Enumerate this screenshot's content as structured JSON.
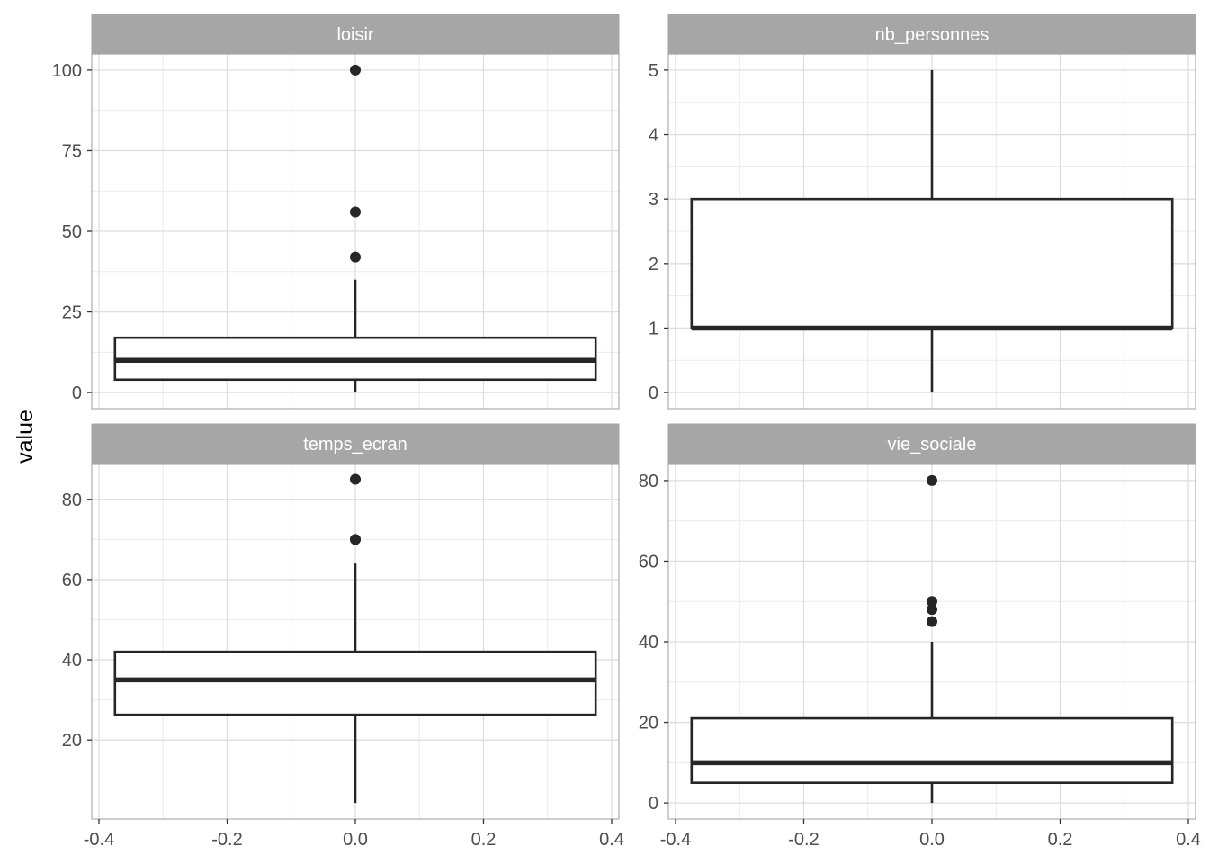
{
  "chart_data": {
    "type": "boxplot",
    "ylabel": "value",
    "xlabel": "",
    "x_ticks": [
      "-0.4",
      "-0.2",
      "0.0",
      "0.2",
      "0.4"
    ],
    "x_tick_values": [
      -0.4,
      -0.2,
      0.0,
      0.2,
      0.4
    ],
    "xlim": [
      -0.4,
      0.4
    ],
    "box_half_width": 0.375,
    "grid": true,
    "facets": [
      {
        "name": "loisir",
        "ylim": [
          -5,
          105
        ],
        "y_ticks": [
          "0",
          "25",
          "50",
          "75",
          "100"
        ],
        "y_tick_values": [
          0,
          25,
          50,
          75,
          100
        ],
        "box": {
          "min": 0,
          "q1": 4,
          "median": 10,
          "q3": 17,
          "max": 35
        },
        "outliers": [
          42,
          56,
          100
        ]
      },
      {
        "name": "nb_personnes",
        "ylim": [
          -0.25,
          5.25
        ],
        "y_ticks": [
          "0",
          "1",
          "2",
          "3",
          "4",
          "5"
        ],
        "y_tick_values": [
          0,
          1,
          2,
          3,
          4,
          5
        ],
        "box": {
          "min": 0,
          "q1": 1,
          "median": 1,
          "q3": 3,
          "max": 5
        },
        "outliers": []
      },
      {
        "name": "temps_ecran",
        "ylim": [
          0.3,
          88.7
        ],
        "y_ticks": [
          "20",
          "40",
          "60",
          "80"
        ],
        "y_tick_values": [
          20,
          40,
          60,
          80
        ],
        "box": {
          "min": 4.3,
          "q1": 26.3,
          "median": 35,
          "q3": 42,
          "max": 64
        },
        "outliers": [
          70,
          70,
          85
        ]
      },
      {
        "name": "vie_sociale",
        "ylim": [
          -4,
          84
        ],
        "y_ticks": [
          "0",
          "20",
          "40",
          "60",
          "80"
        ],
        "y_tick_values": [
          0,
          20,
          40,
          60,
          80
        ],
        "box": {
          "min": 0,
          "q1": 5,
          "median": 10,
          "q3": 21,
          "max": 40
        },
        "outliers": [
          45,
          48,
          50,
          80
        ]
      }
    ]
  }
}
